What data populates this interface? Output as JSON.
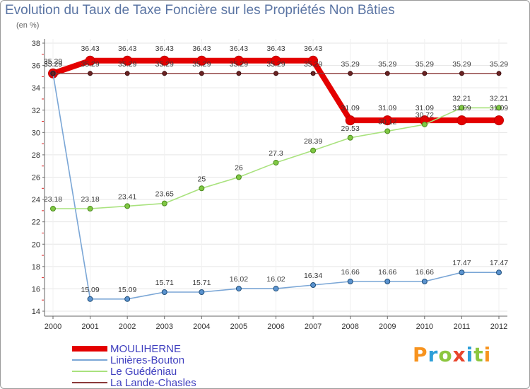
{
  "chart_data": {
    "type": "line",
    "title": "Evolution du Taux de Taxe Foncière sur les Propriétés Non Bâties",
    "ylabel": "(en %)",
    "x": [
      2000,
      2001,
      2002,
      2003,
      2004,
      2005,
      2006,
      2007,
      2008,
      2009,
      2010,
      2011,
      2012
    ],
    "ylim": [
      14,
      38
    ],
    "yticks": [
      14,
      16,
      18,
      20,
      22,
      24,
      26,
      28,
      30,
      32,
      34,
      36,
      38
    ],
    "grid": true,
    "series": [
      {
        "name": "MOULIHERNE",
        "color": "#e40000",
        "marker_color": "#e40000",
        "marker_stroke": "#c00000",
        "values": [
          35.29,
          36.43,
          36.43,
          36.43,
          36.43,
          36.43,
          36.43,
          36.43,
          31.09,
          31.09,
          31.09,
          31.09,
          31.09
        ]
      },
      {
        "name": "Linières-Bouton",
        "color": "#7aa6d6",
        "marker_color": "#5b93cf",
        "marker_stroke": "#1f4e79",
        "values": [
          35.29,
          15.09,
          15.09,
          15.71,
          15.71,
          16.02,
          16.02,
          16.34,
          16.66,
          16.66,
          16.66,
          17.47,
          17.47
        ]
      },
      {
        "name": "Le Guédéniau",
        "color": "#a9e27e",
        "marker_color": "#7fc843",
        "marker_stroke": "#4d8a1f",
        "values": [
          23.18,
          23.18,
          23.41,
          23.65,
          25,
          26,
          27.3,
          28.39,
          29.53,
          30.12,
          30.72,
          32.21,
          32.21
        ]
      },
      {
        "name": "La Lande-Chasles",
        "color": "#8b3a3a",
        "marker_color": "#6a2222",
        "marker_stroke": "#3f0f0f",
        "values": [
          35.29,
          35.29,
          35.29,
          35.29,
          35.29,
          35.29,
          35.29,
          35.29,
          35.29,
          35.29,
          35.29,
          35.29,
          35.29
        ]
      }
    ]
  },
  "logo": {
    "letters": [
      "P",
      "r",
      "o",
      "x",
      "i",
      "t",
      "i"
    ],
    "colors": [
      "#f7931e",
      "#2e9fd8",
      "#8cc63f",
      "#e8452c",
      "#2e9fd8",
      "#8cc63f",
      "#f7931e"
    ]
  },
  "colors": {
    "title": "#5a74a3",
    "legend_text": "#3f3fbf",
    "axis": "#666666",
    "grid": "#e6e6e6",
    "minor_tick": "#dd2222"
  }
}
